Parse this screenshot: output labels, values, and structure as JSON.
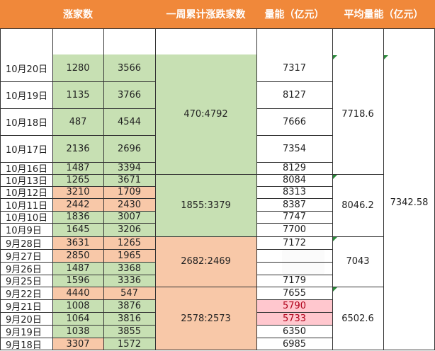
{
  "colors": {
    "header": "#f0883a",
    "green": "#c7e0b3",
    "salmon": "#f8c8a8",
    "red": "#ffc7ce",
    "red_text": "#b0001a",
    "plain": "#ffffff"
  },
  "header": {
    "up_label": "涨家数",
    "down_label": "",
    "week_label": "一周累计涨跌家数",
    "volume_label": "量能（亿元）",
    "avg_label": "平均量能（亿元）"
  },
  "rows": [
    {
      "date": "10月20日",
      "up": "1280",
      "down": "3566",
      "volume": "7317",
      "up_color": "green",
      "down_color": "green",
      "volume_color": "plain"
    },
    {
      "date": "10月19日",
      "up": "1135",
      "down": "3766",
      "volume": "8127",
      "up_color": "green",
      "down_color": "green",
      "volume_color": "plain"
    },
    {
      "date": "10月18日",
      "up": "487",
      "down": "4544",
      "volume": "7666",
      "up_color": "green",
      "down_color": "green",
      "volume_color": "plain"
    },
    {
      "date": "10月17日",
      "up": "2136",
      "down": "2696",
      "volume": "7354",
      "up_color": "green",
      "down_color": "green",
      "volume_color": "plain"
    },
    {
      "date": "10月16日",
      "up": "1487",
      "down": "3394",
      "volume": "8129",
      "up_color": "green",
      "down_color": "green",
      "volume_color": "plain"
    },
    {
      "date": "10月13日",
      "up": "1265",
      "down": "3671",
      "volume": "8084",
      "up_color": "green",
      "down_color": "green",
      "volume_color": "plain"
    },
    {
      "date": "10月12日",
      "up": "3210",
      "down": "1709",
      "volume": "8313",
      "up_color": "salmon",
      "down_color": "salmon",
      "volume_color": "plain"
    },
    {
      "date": "10月11日",
      "up": "2442",
      "down": "2430",
      "volume": "8387",
      "up_color": "salmon",
      "down_color": "salmon",
      "volume_color": "plain"
    },
    {
      "date": "10月10日",
      "up": "1836",
      "down": "3007",
      "volume": "7747",
      "up_color": "green",
      "down_color": "green",
      "volume_color": "plain"
    },
    {
      "date": "10月9日",
      "up": "1645",
      "down": "3206",
      "volume": "7700",
      "up_color": "green",
      "down_color": "green",
      "volume_color": "plain"
    },
    {
      "date": "9月28日",
      "up": "3631",
      "down": "1265",
      "volume": "7172",
      "up_color": "salmon",
      "down_color": "salmon",
      "volume_color": "plain"
    },
    {
      "date": "9月27日",
      "up": "2850",
      "down": "1965",
      "volume": "",
      "up_color": "salmon",
      "down_color": "salmon",
      "volume_color": "plain"
    },
    {
      "date": "9月26日",
      "up": "1487",
      "down": "3368",
      "volume": "",
      "up_color": "green",
      "down_color": "green",
      "volume_color": "plain"
    },
    {
      "date": "9月25日",
      "up": "1596",
      "down": "3336",
      "volume": "7179",
      "up_color": "green",
      "down_color": "green",
      "volume_color": "plain"
    },
    {
      "date": "9月22日",
      "up": "4440",
      "down": "547",
      "volume": "7655",
      "up_color": "salmon",
      "down_color": "salmon",
      "volume_color": "plain"
    },
    {
      "date": "9月21日",
      "up": "1008",
      "down": "3876",
      "volume": "5790",
      "up_color": "green",
      "down_color": "green",
      "volume_color": "red"
    },
    {
      "date": "9月20日",
      "up": "1064",
      "down": "3816",
      "volume": "5733",
      "up_color": "green",
      "down_color": "green",
      "volume_color": "red"
    },
    {
      "date": "9月19日",
      "up": "1038",
      "down": "3855",
      "volume": "6350",
      "up_color": "green",
      "down_color": "green",
      "volume_color": "plain"
    },
    {
      "date": "9月18日",
      "up": "3307",
      "down": "1572",
      "volume": "6985",
      "up_color": "salmon",
      "down_color": "green",
      "volume_color": "plain"
    }
  ],
  "weeks": [
    {
      "ratio": "470:4792",
      "avg": "7718.6",
      "color": "green",
      "first": 0,
      "last": 4
    },
    {
      "ratio": "1855:3379",
      "avg": "8046.2",
      "color": "green",
      "first": 5,
      "last": 9
    },
    {
      "ratio": "2682:2469",
      "avg": "7043",
      "color": "salmon",
      "first": 10,
      "last": 13
    },
    {
      "ratio": "2578:2573",
      "avg": "6502.6",
      "color": "salmon",
      "first": 14,
      "last": 18
    }
  ],
  "overall_avg": "7342.58"
}
